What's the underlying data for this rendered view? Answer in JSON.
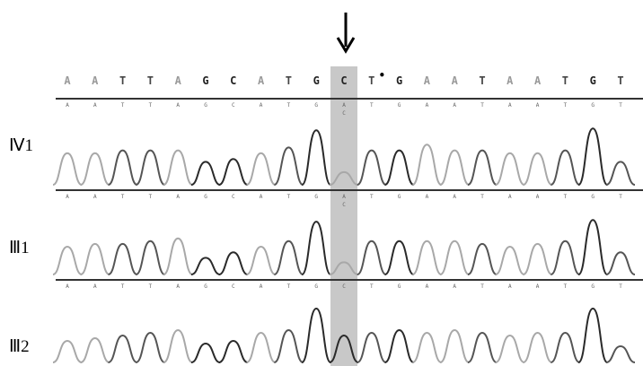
{
  "top_sequence": [
    "A",
    "A",
    "T",
    "T",
    "A",
    "G",
    "C",
    "A",
    "T",
    "G",
    "C",
    "T",
    "G",
    "A",
    "A",
    "T",
    "A",
    "A",
    "T",
    "G",
    "T"
  ],
  "highlight_index": 10,
  "highlight_color": "#c8c8c8",
  "mutation_marker": "•",
  "arrow_direction": "down-arrow",
  "tracks": [
    {
      "label": "Ⅳ1",
      "small_sequence": [
        "A",
        "A",
        "T",
        "T",
        "A",
        "G",
        "C",
        "A",
        "T",
        "G",
        "A",
        "T",
        "G",
        "A",
        "A",
        "T",
        "A",
        "A",
        "T",
        "G",
        "T"
      ],
      "small_extra": "C",
      "peak_heights": [
        0.55,
        0.55,
        0.6,
        0.6,
        0.6,
        0.4,
        0.45,
        0.55,
        0.65,
        0.95,
        0.22,
        0.6,
        0.6,
        0.7,
        0.6,
        0.6,
        0.55,
        0.55,
        0.6,
        0.98,
        0.4
      ]
    },
    {
      "label": "Ⅲ1",
      "small_sequence": [
        "A",
        "A",
        "T",
        "T",
        "A",
        "G",
        "C",
        "A",
        "T",
        "G",
        "A",
        "T",
        "G",
        "A",
        "A",
        "T",
        "A",
        "A",
        "T",
        "G",
        "T"
      ],
      "small_extra": "C",
      "peak_heights": [
        0.5,
        0.55,
        0.55,
        0.6,
        0.65,
        0.3,
        0.4,
        0.5,
        0.6,
        0.95,
        0.22,
        0.6,
        0.6,
        0.6,
        0.6,
        0.55,
        0.5,
        0.55,
        0.6,
        0.98,
        0.4
      ]
    },
    {
      "label": "Ⅲ2",
      "small_sequence": [
        "A",
        "A",
        "T",
        "T",
        "A",
        "G",
        "C",
        "A",
        "T",
        "G",
        "C",
        "T",
        "G",
        "A",
        "A",
        "T",
        "A",
        "A",
        "T",
        "G",
        "T"
      ],
      "small_extra": "",
      "peak_heights": [
        0.4,
        0.45,
        0.5,
        0.55,
        0.6,
        0.35,
        0.4,
        0.55,
        0.6,
        1.0,
        0.5,
        0.55,
        0.6,
        0.55,
        0.6,
        0.55,
        0.5,
        0.55,
        0.55,
        1.0,
        0.3
      ]
    }
  ]
}
